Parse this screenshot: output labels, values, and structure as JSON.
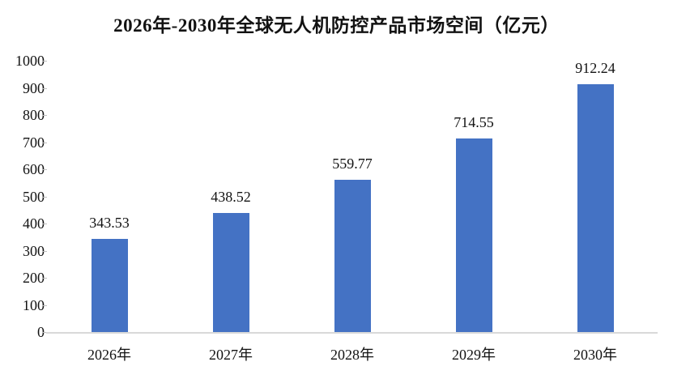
{
  "title": "2026年-2030年全球无人机防控产品市场空间（亿元）",
  "chart_data": {
    "type": "bar",
    "title": "2026年-2030年全球无人机防控产品市场空间（亿元）",
    "categories": [
      "2026年",
      "2027年",
      "2028年",
      "2029年",
      "2030年"
    ],
    "values": [
      343.53,
      438.52,
      559.77,
      714.55,
      912.24
    ],
    "value_labels": [
      "343.53",
      "438.52",
      "559.77",
      "714.55",
      "912.24"
    ],
    "xlabel": "",
    "ylabel": "",
    "ylim": [
      0,
      1000
    ],
    "y_tick_step": 100,
    "y_tick_labels": [
      "0",
      "100",
      "200",
      "300",
      "400",
      "500",
      "600",
      "700",
      "800",
      "900",
      "1000"
    ],
    "grid": false,
    "legend_position": "none",
    "bar_color": "#4472c4",
    "axis_line_color": "#d9d9d9",
    "tick_color": "#bfbfbf",
    "text_color": "#121212"
  }
}
